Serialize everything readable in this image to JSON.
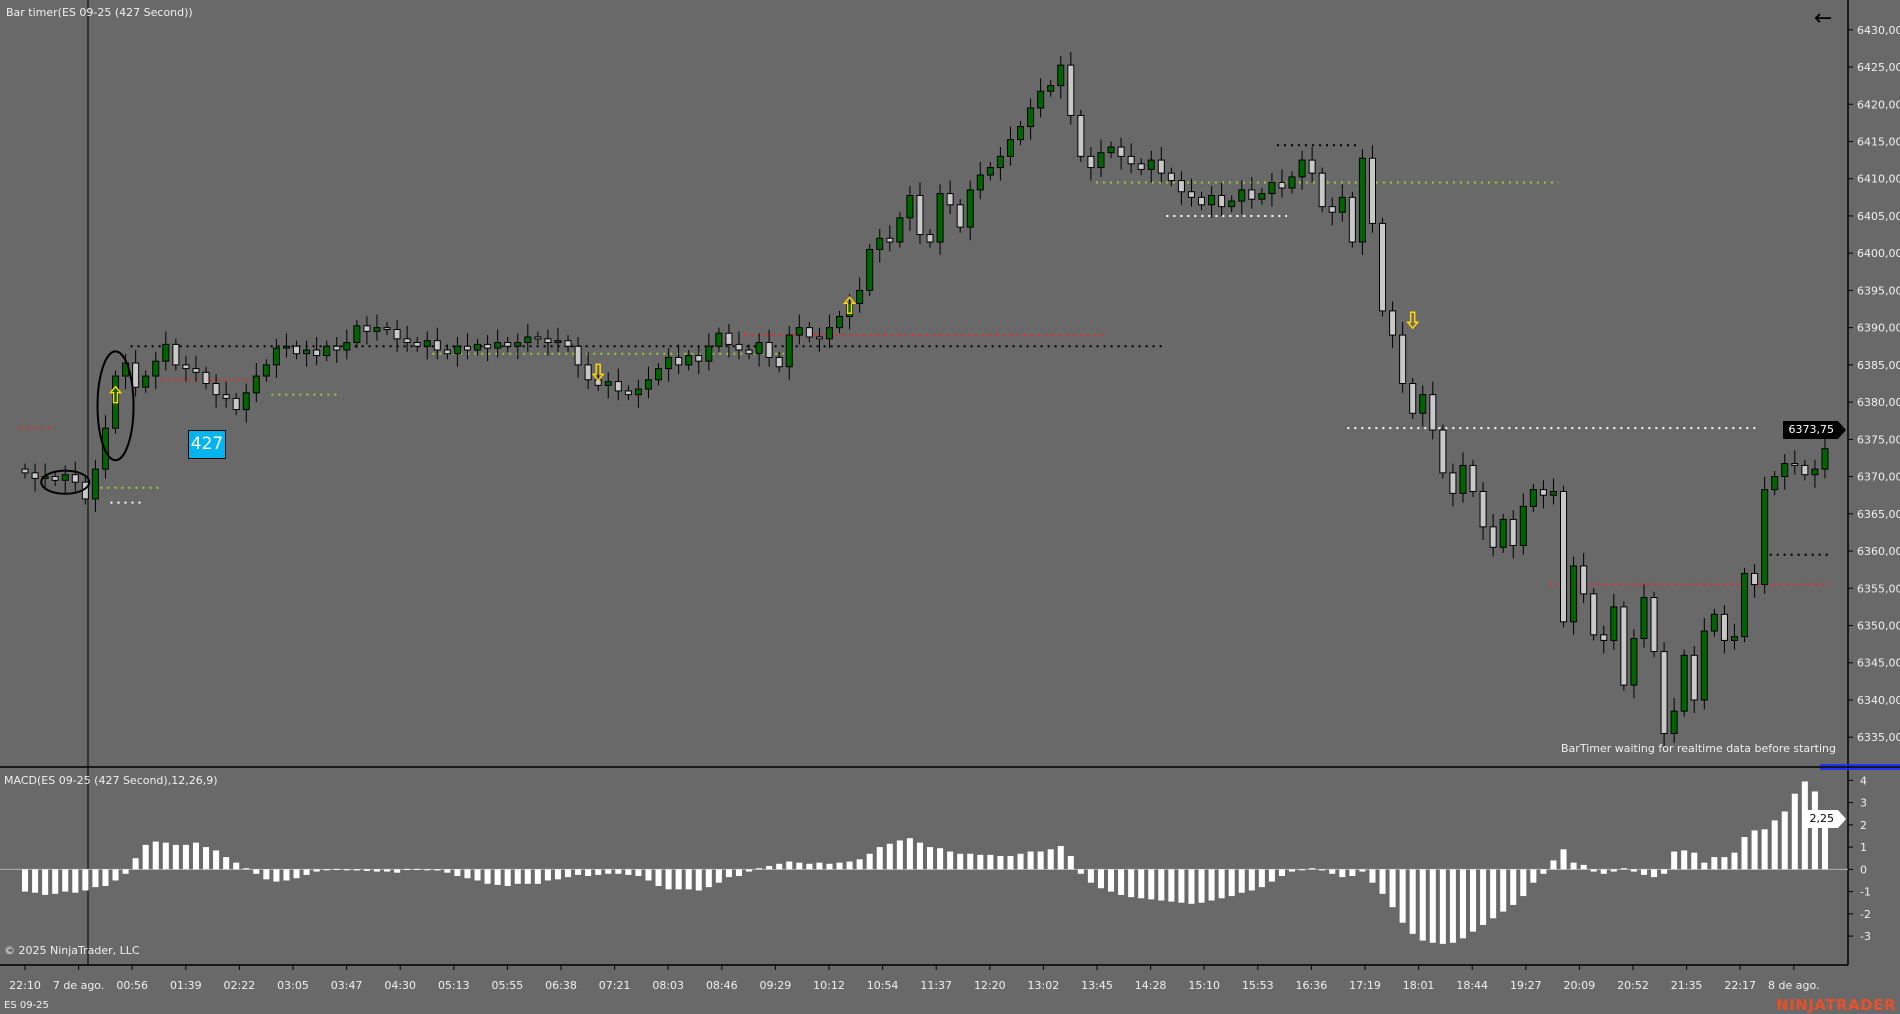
{
  "window": {
    "title": "Bar timer(ES 09-25 (427 Second))",
    "instrument": "ES 09-25",
    "copyright": "© 2025 NinjaTrader, LLC",
    "logo": "NINJATRADER",
    "status_message": "BarTimer waiting for realtime data before starting",
    "timer_value": "427",
    "back_icon": "arrow-left-icon"
  },
  "colors": {
    "background": "#696969",
    "up_candle": "#006400",
    "down_candle": "#c8c8c8",
    "macd_histogram": "#ffffff",
    "logo": "#e8502a",
    "timer_box": "#00b4f0"
  },
  "chart_data": [
    {
      "type": "candlestick",
      "title": "Bar timer(ES 09-25 (427 Second))",
      "ylim": [
        6331,
        6434
      ],
      "yticks": [
        "6335,00",
        "6340,00",
        "6345,00",
        "6350,00",
        "6355,00",
        "6360,00",
        "6365,00",
        "6370,00",
        "6375,00",
        "6380,00",
        "6385,00",
        "6390,00",
        "6395,00",
        "6400,00",
        "6405,00",
        "6410,00",
        "6415,00",
        "6420,00",
        "6425,00",
        "6430,00"
      ],
      "xticks": [
        "22:10",
        "7 de ago.",
        "00:56",
        "01:39",
        "02:22",
        "03:05",
        "03:47",
        "04:30",
        "05:13",
        "05:55",
        "06:38",
        "07:21",
        "08:03",
        "08:46",
        "09:29",
        "10:12",
        "10:54",
        "11:37",
        "12:20",
        "13:02",
        "13:45",
        "14:28",
        "15:10",
        "15:53",
        "16:36",
        "17:19",
        "18:01",
        "18:44",
        "19:27",
        "20:09",
        "20:52",
        "21:35",
        "22:17",
        "8 de ago."
      ],
      "last_price": "6373,75",
      "closes": [
        6370.5,
        6369.75,
        6370,
        6369.5,
        6370.25,
        6369.25,
        6367,
        6371,
        6376.5,
        6383.5,
        6385.25,
        6382,
        6383.5,
        6385.5,
        6387.75,
        6385,
        6384.5,
        6384,
        6382.5,
        6381,
        6380.5,
        6379,
        6381.25,
        6383.5,
        6385,
        6387.25,
        6387.5,
        6386.5,
        6387,
        6386.25,
        6387.5,
        6387,
        6388,
        6390.25,
        6389.5,
        6390,
        6389.75,
        6388.5,
        6388,
        6387.5,
        6388.25,
        6387,
        6386.5,
        6387.5,
        6387,
        6387.75,
        6387.25,
        6388,
        6387.5,
        6388,
        6388.75,
        6388.5,
        6388,
        6388.25,
        6387.5,
        6385,
        6383,
        6382.25,
        6382.75,
        6381.5,
        6381,
        6381.75,
        6383,
        6384.5,
        6386,
        6385,
        6386.25,
        6385.5,
        6387.5,
        6389.25,
        6387.75,
        6387,
        6386.5,
        6388,
        6386,
        6384.75,
        6389,
        6390,
        6388.75,
        6388.5,
        6390,
        6391.5,
        6393.25,
        6395,
        6400.5,
        6402,
        6401.5,
        6404.75,
        6407.75,
        6402.5,
        6401.5,
        6408,
        6406.5,
        6403.5,
        6408.5,
        6410.5,
        6411.5,
        6413,
        6415.25,
        6417,
        6419.5,
        6421.75,
        6422.5,
        6425.25,
        6418.5,
        6413,
        6411.5,
        6413.5,
        6414.25,
        6413,
        6412,
        6411.25,
        6412.5,
        6410.75,
        6409.75,
        6408.25,
        6407.5,
        6406.5,
        6407.75,
        6406.25,
        6407,
        6408.5,
        6407.25,
        6408,
        6409.5,
        6408.75,
        6410.25,
        6412.5,
        6410.75,
        6406.25,
        6405.5,
        6407.5,
        6401.5,
        6412.75,
        6404,
        6392.25,
        6389,
        6382.5,
        6378.5,
        6381,
        6376.25,
        6370.5,
        6367.75,
        6371.5,
        6368,
        6363.25,
        6360.5,
        6364.25,
        6360.75,
        6366,
        6368.25,
        6367.5,
        6368,
        6350.5,
        6358,
        6354.25,
        6348.75,
        6348,
        6352.5,
        6342,
        6348.25,
        6353.75,
        6346.5,
        6335.5,
        6338.5,
        6346,
        6340,
        6349.25,
        6351.5,
        6348,
        6348.5,
        6357,
        6355.5,
        6368.25,
        6370,
        6371.75,
        6371.5,
        6370.25,
        6371,
        6373.75
      ],
      "levels": [
        {
          "price": 6387.5,
          "from_bar": 11,
          "to_bar": 113,
          "color": "#000000"
        },
        {
          "price": 6409.5,
          "from_bar": 107,
          "to_bar": 152,
          "color": "#9acd32"
        },
        {
          "price": 6376.5,
          "from_bar": 132,
          "to_bar": 172,
          "color": "#ffffff"
        },
        {
          "price": 6355.5,
          "from_bar": 152,
          "to_bar": 179,
          "color": "#ff2020"
        },
        {
          "price": 6359.5,
          "from_bar": 174,
          "to_bar": 179,
          "color": "#000000"
        },
        {
          "price": 6414.5,
          "from_bar": 125,
          "to_bar": 132,
          "color": "#000000"
        },
        {
          "price": 6405,
          "from_bar": 114,
          "to_bar": 125,
          "color": "#ffffff"
        },
        {
          "price": 6389,
          "from_bar": 72,
          "to_bar": 107,
          "color": "#ff2020"
        },
        {
          "price": 6386.5,
          "from_bar": 41,
          "to_bar": 75,
          "color": "#9acd32"
        },
        {
          "price": 6383,
          "from_bar": 14,
          "to_bar": 23,
          "color": "#ff2020"
        },
        {
          "price": 6381,
          "from_bar": 25,
          "to_bar": 31,
          "color": "#9acd32"
        },
        {
          "price": 6368.5,
          "from_bar": 8,
          "to_bar": 13,
          "color": "#9acd32"
        },
        {
          "price": 6366.5,
          "from_bar": 9,
          "to_bar": 11,
          "color": "#ffffff"
        },
        {
          "price": 6376.5,
          "from_bar": 0,
          "to_bar": 2,
          "color": "#ff2020"
        }
      ],
      "signals": [
        {
          "bar": 9,
          "price": 6381,
          "direction": "up"
        },
        {
          "bar": 57,
          "price": 6384,
          "direction": "down"
        },
        {
          "bar": 82,
          "price": 6393,
          "direction": "up"
        },
        {
          "bar": 138,
          "price": 6391,
          "direction": "down"
        }
      ],
      "ellipses": [
        {
          "bar": 4,
          "price_low": 6368.5,
          "price_high": 6370
        },
        {
          "bar": 9,
          "price_low": 6373,
          "price_high": 6386
        }
      ]
    },
    {
      "type": "bar",
      "title": "MACD(ES 09-25 (427 Second),12,26,9)",
      "ylim": [
        -4.3,
        4.6
      ],
      "yticks": [
        "-3",
        "-2",
        "-1",
        "0",
        "1",
        "2",
        "3",
        "4"
      ],
      "last_value": "2,25",
      "values": [
        -1.0,
        -1.05,
        -1.15,
        -1.1,
        -1.0,
        -1.05,
        -0.95,
        -0.8,
        -0.75,
        -0.5,
        -0.2,
        0.5,
        1.1,
        1.25,
        1.2,
        1.1,
        1.1,
        1.2,
        1.0,
        0.85,
        0.55,
        0.3,
        0.05,
        -0.2,
        -0.45,
        -0.55,
        -0.5,
        -0.4,
        -0.25,
        -0.1,
        0,
        0.02,
        -0.03,
        -0.05,
        -0.07,
        -0.1,
        -0.1,
        -0.15,
        0.02,
        0.02,
        -0.03,
        -0.05,
        -0.15,
        -0.3,
        -0.4,
        -0.5,
        -0.65,
        -0.7,
        -0.75,
        -0.65,
        -0.65,
        -0.65,
        -0.5,
        -0.45,
        -0.35,
        -0.25,
        -0.3,
        -0.25,
        -0.2,
        -0.2,
        -0.25,
        -0.3,
        -0.5,
        -0.75,
        -0.9,
        -0.9,
        -0.9,
        -0.95,
        -0.8,
        -0.6,
        -0.35,
        -0.3,
        -0.1,
        0.05,
        0.15,
        0.25,
        0.35,
        0.3,
        0.25,
        0.3,
        0.25,
        0.3,
        0.35,
        0.45,
        0.7,
        1.0,
        1.15,
        1.3,
        1.4,
        1.2,
        1.0,
        0.95,
        0.8,
        0.7,
        0.7,
        0.65,
        0.65,
        0.6,
        0.6,
        0.7,
        0.8,
        0.8,
        0.9,
        1.05,
        0.6,
        -0.2,
        -0.6,
        -0.85,
        -1.0,
        -1.15,
        -1.25,
        -1.3,
        -1.35,
        -1.4,
        -1.45,
        -1.5,
        -1.55,
        -1.5,
        -1.4,
        -1.3,
        -1.2,
        -1.05,
        -0.95,
        -0.8,
        -0.55,
        -0.3,
        -0.1,
        0,
        0.05,
        -0.05,
        -0.2,
        -0.35,
        -0.3,
        -0.1,
        -0.6,
        -1.1,
        -1.7,
        -2.4,
        -2.9,
        -3.2,
        -3.3,
        -3.35,
        -3.3,
        -3.1,
        -2.8,
        -2.5,
        -2.2,
        -1.9,
        -1.6,
        -1.2,
        -0.6,
        -0.2,
        0.4,
        0.9,
        0.3,
        0.2,
        -0.1,
        -0.2,
        -0.1,
        0.05,
        -0.1,
        -0.25,
        -0.35,
        -0.2,
        0.8,
        0.85,
        0.75,
        0.3,
        0.55,
        0.55,
        0.75,
        1.45,
        1.75,
        1.8,
        2.2,
        2.6,
        3.4,
        3.95,
        3.5,
        2.25
      ]
    }
  ]
}
